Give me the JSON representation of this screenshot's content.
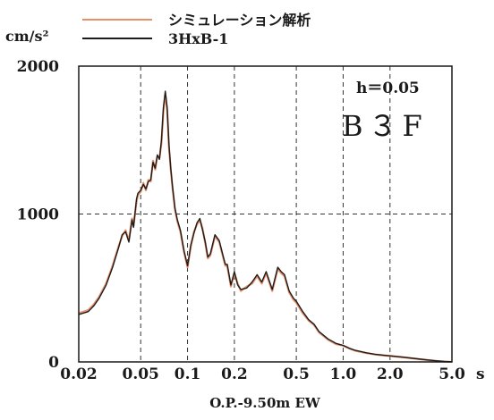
{
  "chart_data": {
    "type": "line",
    "unit_label": "cm/s²",
    "xlabel": "O.P.-9.50m EW",
    "x_unit": "s",
    "x_scale": "log",
    "xlim": [
      0.02,
      5.0
    ],
    "ylim": [
      0,
      2000
    ],
    "grid": true,
    "x_ticks": [
      {
        "value": 0.02,
        "label": "0.02"
      },
      {
        "value": 0.05,
        "label": "0.05"
      },
      {
        "value": 0.1,
        "label": "0.1"
      },
      {
        "value": 0.2,
        "label": "0.2"
      },
      {
        "value": 0.5,
        "label": "0.5"
      },
      {
        "value": 1.0,
        "label": "1.0"
      },
      {
        "value": 2.0,
        "label": "2.0"
      },
      {
        "value": 5.0,
        "label": "5.0"
      }
    ],
    "x_end_unit": "s",
    "y_ticks": [
      {
        "value": 0,
        "label": "0"
      },
      {
        "value": 1000,
        "label": "1000"
      },
      {
        "value": 2000,
        "label": "2000"
      }
    ],
    "annotations": {
      "damping": "h＝0.05",
      "floor": "B３F"
    },
    "legend_position": "top",
    "series": [
      {
        "name": "シミュレーション解析",
        "color": "#e8906a",
        "x": [
          0.02,
          0.023,
          0.025,
          0.027,
          0.03,
          0.033,
          0.036,
          0.038,
          0.04,
          0.042,
          0.044,
          0.045,
          0.047,
          0.048,
          0.05,
          0.052,
          0.054,
          0.056,
          0.058,
          0.06,
          0.062,
          0.064,
          0.066,
          0.068,
          0.07,
          0.072,
          0.074,
          0.076,
          0.078,
          0.08,
          0.083,
          0.086,
          0.09,
          0.095,
          0.1,
          0.105,
          0.11,
          0.115,
          0.12,
          0.125,
          0.13,
          0.135,
          0.14,
          0.15,
          0.16,
          0.17,
          0.175,
          0.18,
          0.19,
          0.2,
          0.21,
          0.22,
          0.24,
          0.26,
          0.28,
          0.3,
          0.32,
          0.35,
          0.38,
          0.4,
          0.42,
          0.45,
          0.48,
          0.5,
          0.55,
          0.6,
          0.65,
          0.7,
          0.8,
          0.9,
          1.0,
          1.1,
          1.2,
          1.4,
          1.6,
          1.8,
          2.0,
          2.5,
          3.0,
          3.5,
          4.0,
          4.5,
          5.0
        ],
        "values": [
          330,
          350,
          390,
          440,
          530,
          650,
          780,
          850,
          890,
          820,
          970,
          920,
          1080,
          1130,
          1150,
          1210,
          1160,
          1230,
          1220,
          1360,
          1300,
          1390,
          1380,
          1480,
          1700,
          1810,
          1700,
          1450,
          1300,
          1180,
          1030,
          950,
          880,
          740,
          640,
          780,
          880,
          930,
          960,
          900,
          800,
          700,
          720,
          850,
          810,
          700,
          650,
          650,
          510,
          600,
          530,
          480,
          510,
          530,
          580,
          530,
          600,
          480,
          630,
          600,
          580,
          470,
          420,
          400,
          330,
          280,
          250,
          200,
          150,
          120,
          110,
          90,
          75,
          60,
          50,
          45,
          40,
          30,
          20,
          12,
          6,
          2,
          0
        ]
      },
      {
        "name": "3HxB-1",
        "color": "#1c1c1c",
        "x": [
          0.02,
          0.023,
          0.025,
          0.027,
          0.03,
          0.033,
          0.036,
          0.038,
          0.04,
          0.042,
          0.044,
          0.045,
          0.047,
          0.048,
          0.05,
          0.052,
          0.054,
          0.056,
          0.058,
          0.06,
          0.062,
          0.064,
          0.066,
          0.068,
          0.07,
          0.072,
          0.074,
          0.076,
          0.078,
          0.08,
          0.083,
          0.086,
          0.09,
          0.095,
          0.1,
          0.105,
          0.11,
          0.115,
          0.12,
          0.125,
          0.13,
          0.135,
          0.14,
          0.15,
          0.16,
          0.17,
          0.175,
          0.18,
          0.19,
          0.2,
          0.21,
          0.22,
          0.24,
          0.26,
          0.28,
          0.3,
          0.32,
          0.35,
          0.38,
          0.4,
          0.42,
          0.45,
          0.48,
          0.5,
          0.55,
          0.6,
          0.65,
          0.7,
          0.8,
          0.9,
          1.0,
          1.1,
          1.2,
          1.4,
          1.6,
          1.8,
          2.0,
          2.5,
          3.0,
          3.5,
          4.0,
          4.5,
          5.0
        ],
        "values": [
          320,
          340,
          380,
          430,
          520,
          640,
          770,
          860,
          880,
          810,
          960,
          910,
          1100,
          1140,
          1160,
          1200,
          1170,
          1220,
          1230,
          1350,
          1310,
          1400,
          1370,
          1500,
          1720,
          1830,
          1720,
          1470,
          1310,
          1190,
          1040,
          960,
          890,
          750,
          650,
          790,
          870,
          940,
          970,
          890,
          810,
          710,
          730,
          860,
          820,
          710,
          660,
          660,
          520,
          610,
          520,
          490,
          500,
          540,
          590,
          540,
          610,
          490,
          640,
          610,
          590,
          480,
          430,
          410,
          340,
          285,
          255,
          205,
          155,
          125,
          112,
          92,
          78,
          62,
          52,
          46,
          41,
          31,
          21,
          13,
          7,
          3,
          1
        ]
      }
    ]
  }
}
